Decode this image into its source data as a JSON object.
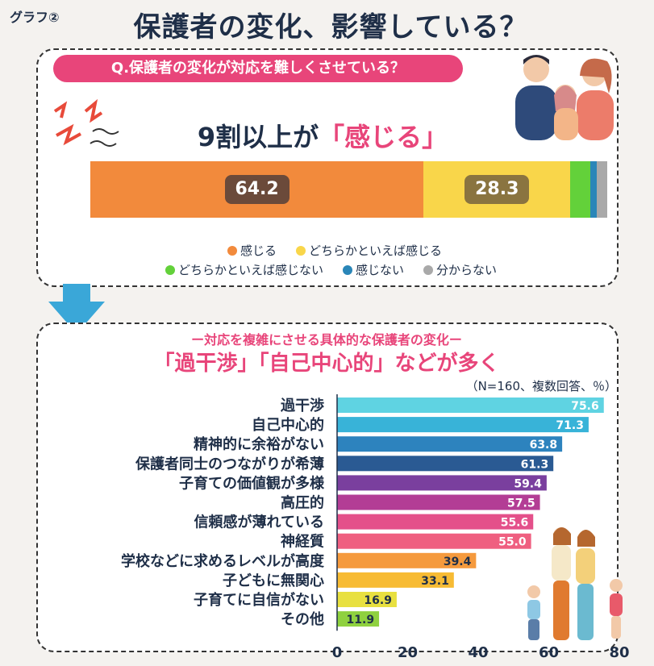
{
  "graph_label": "グラフ②",
  "main_title": "保護者の変化、影響している？",
  "question": "Q.保護者の変化が対応を難しくさせている？",
  "headline_prefix": "9割以上が",
  "headline_accent": "「感じる」",
  "sub_header": "ー対応を複雑にさせる具体的な保護者の変化ー",
  "bottom_headline": "「過干渉」「自己中心的」などが多く",
  "note": "（N=160、複数回答、％）",
  "chart_data": [
    {
      "type": "bar",
      "orientation": "stacked-horizontal",
      "series": [
        {
          "name": "感じる",
          "value": 64.2,
          "color": "#f28a3c",
          "label": "64.2"
        },
        {
          "name": "どちらかといえば感じる",
          "value": 28.3,
          "color": "#f9d64a",
          "label": "28.3"
        },
        {
          "name": "どちらかといえば感じない",
          "value": 3.8,
          "color": "#63d13a"
        },
        {
          "name": "感じない",
          "value": 1.3,
          "color": "#2a86b8"
        },
        {
          "name": "分からない",
          "value": 2.0,
          "color": "#a9a9a9"
        }
      ],
      "legend_placement": "bottom"
    },
    {
      "type": "bar",
      "orientation": "horizontal",
      "categories": [
        "過干渉",
        "自己中心的",
        "精神的に余裕がない",
        "保護者同士のつながりが希薄",
        "子育ての価値観が多様",
        "高圧的",
        "信頼感が薄れている",
        "神経質",
        "学校などに求めるレベルが高度",
        "子どもに無関心",
        "子育てに自信がない",
        "その他"
      ],
      "values": [
        75.6,
        71.3,
        63.8,
        61.3,
        59.4,
        57.5,
        55.6,
        55.0,
        39.4,
        33.1,
        16.9,
        11.9
      ],
      "value_labels": [
        "75.6",
        "71.3",
        "63.8",
        "61.3",
        "59.4",
        "57.5",
        "55.6",
        "55.0",
        "39.4",
        "33.1",
        "16.9",
        "11.9"
      ],
      "colors": [
        "#5fd3e2",
        "#38b3d8",
        "#2d83be",
        "#2a5a93",
        "#7a3f9e",
        "#b33d95",
        "#e4508a",
        "#ef5f80",
        "#f59a3d",
        "#f7bb34",
        "#e8e040",
        "#8fd13f"
      ],
      "xlim": [
        0,
        80
      ],
      "xticks": [
        "0",
        "20",
        "40",
        "60",
        "80"
      ],
      "grid": false
    }
  ]
}
